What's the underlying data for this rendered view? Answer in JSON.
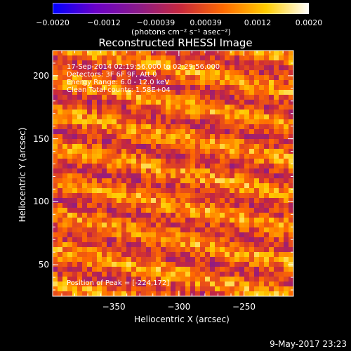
{
  "chart_data": {
    "type": "heatmap",
    "title": "Reconstructed RHESSI Image",
    "xlabel": "Heliocentric X (arcsec)",
    "ylabel": "Heliocentric Y (arcsec)",
    "xlim": [
      -397,
      -212
    ],
    "ylim": [
      25,
      220
    ],
    "x_ticks": [
      -350,
      -300,
      -250
    ],
    "x_tick_labels": [
      "−350",
      "−300",
      "−250"
    ],
    "y_ticks": [
      50,
      100,
      150,
      200
    ],
    "y_tick_labels": [
      "50",
      "100",
      "150",
      "200"
    ],
    "colorbar": {
      "range": [
        -0.002,
        0.002
      ],
      "ticks": [
        -0.002,
        -0.0012,
        -0.00039,
        0.00039,
        0.0012,
        0.002
      ],
      "tick_labels": [
        "−0.0020",
        "−0.0012",
        "−0.00039",
        "0.00039",
        "0.0012",
        "0.0020"
      ],
      "unit_label": "(photons cm⁻² s⁻¹ asec⁻²)",
      "colors": [
        "#0000ff",
        "#6a00c8",
        "#8a1a8a",
        "#c8283c",
        "#ff6a00",
        "#ffcc00",
        "#ffffff"
      ]
    },
    "annotations": {
      "time_range": "17-Sep-2014 02:19:56.000 to 02:29:56.000",
      "detectors": "Detectors: 3F 6F 9F, Att 0",
      "energy": "Energy Range: 6.0 - 12.0 keV",
      "method": "Clean     Total counts: 1.58E+04",
      "peak": "Position of Peak = [-224,172]"
    },
    "peak": {
      "x": -224,
      "y": 172
    },
    "pattern": "diagonal striped noise, rising to the right"
  },
  "footer": {
    "date": "9-May-2017 23:23"
  }
}
